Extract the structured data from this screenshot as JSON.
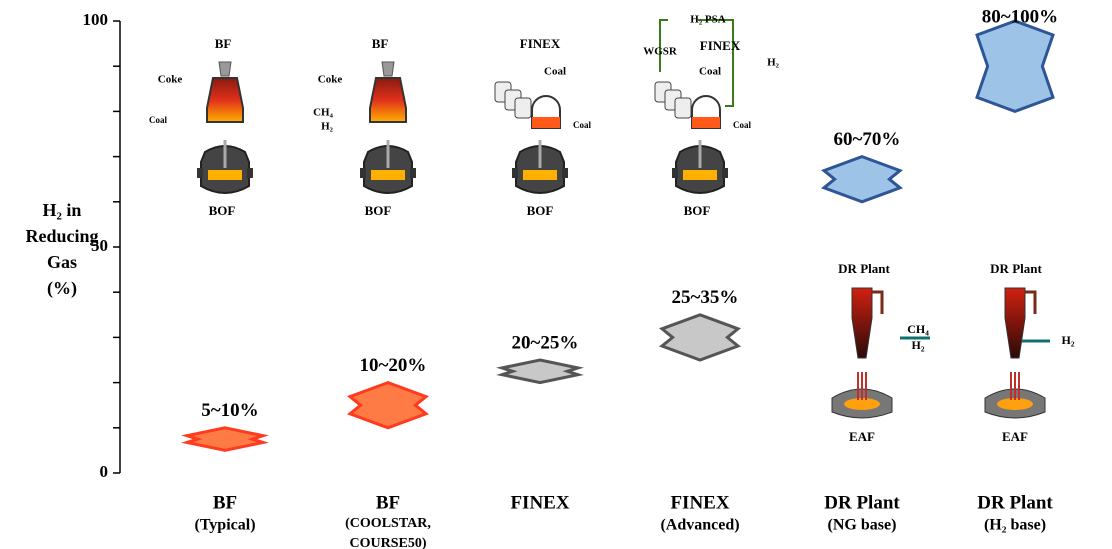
{
  "chart_data": {
    "type": "range",
    "y_label": [
      "H₂ in",
      "Reducing",
      "Gas",
      "(%)"
    ],
    "categories": [
      [
        "BF",
        "(Typical)"
      ],
      [
        "BF",
        "(COOLSTAR,",
        "COURSE50)"
      ],
      [
        "FINEX"
      ],
      [
        "FINEX",
        "(Advanced)"
      ],
      [
        "DR Plant",
        "(NG base)"
      ],
      [
        "DR Plant",
        "(H₂ base)"
      ]
    ],
    "low": [
      5,
      10,
      20,
      25,
      60,
      80
    ],
    "high": [
      10,
      20,
      25,
      35,
      70,
      100
    ],
    "value_labels": [
      "5~10%",
      "10~20%",
      "20~25%",
      "25~35%",
      "60~70%",
      "80~100%"
    ],
    "colors": [
      "#ff7b45",
      "#ff7b45",
      "#c8c8c8",
      "#c8c8c8",
      "#9dc3e6",
      "#9dc3e6"
    ],
    "edge_colors": [
      "#ff3b1f",
      "#ff3b1f",
      "#555555",
      "#555555",
      "#2e5597",
      "#2e5597"
    ],
    "ylim": [
      0,
      100
    ],
    "yticks": [
      0,
      50,
      100
    ],
    "minor_yticks": [
      0,
      10,
      20,
      30,
      40,
      50,
      60,
      70,
      80,
      90,
      100
    ],
    "illustration_labels": [
      [
        "BF",
        "Coke",
        "Coal",
        "BOF"
      ],
      [
        "BF",
        "Coke",
        "CH₄",
        "H₂",
        "BOF"
      ],
      [
        "FINEX",
        "Coal",
        "Coal",
        "BOF"
      ],
      [
        "H₂ PSA",
        "WGSR",
        "FINEX",
        "H₂",
        "Coal",
        "Coal",
        "BOF"
      ],
      [
        "DR Plant",
        "CH₄",
        "H₂",
        "EAF"
      ],
      [
        "DR Plant",
        "H₂",
        "EAF"
      ]
    ]
  }
}
